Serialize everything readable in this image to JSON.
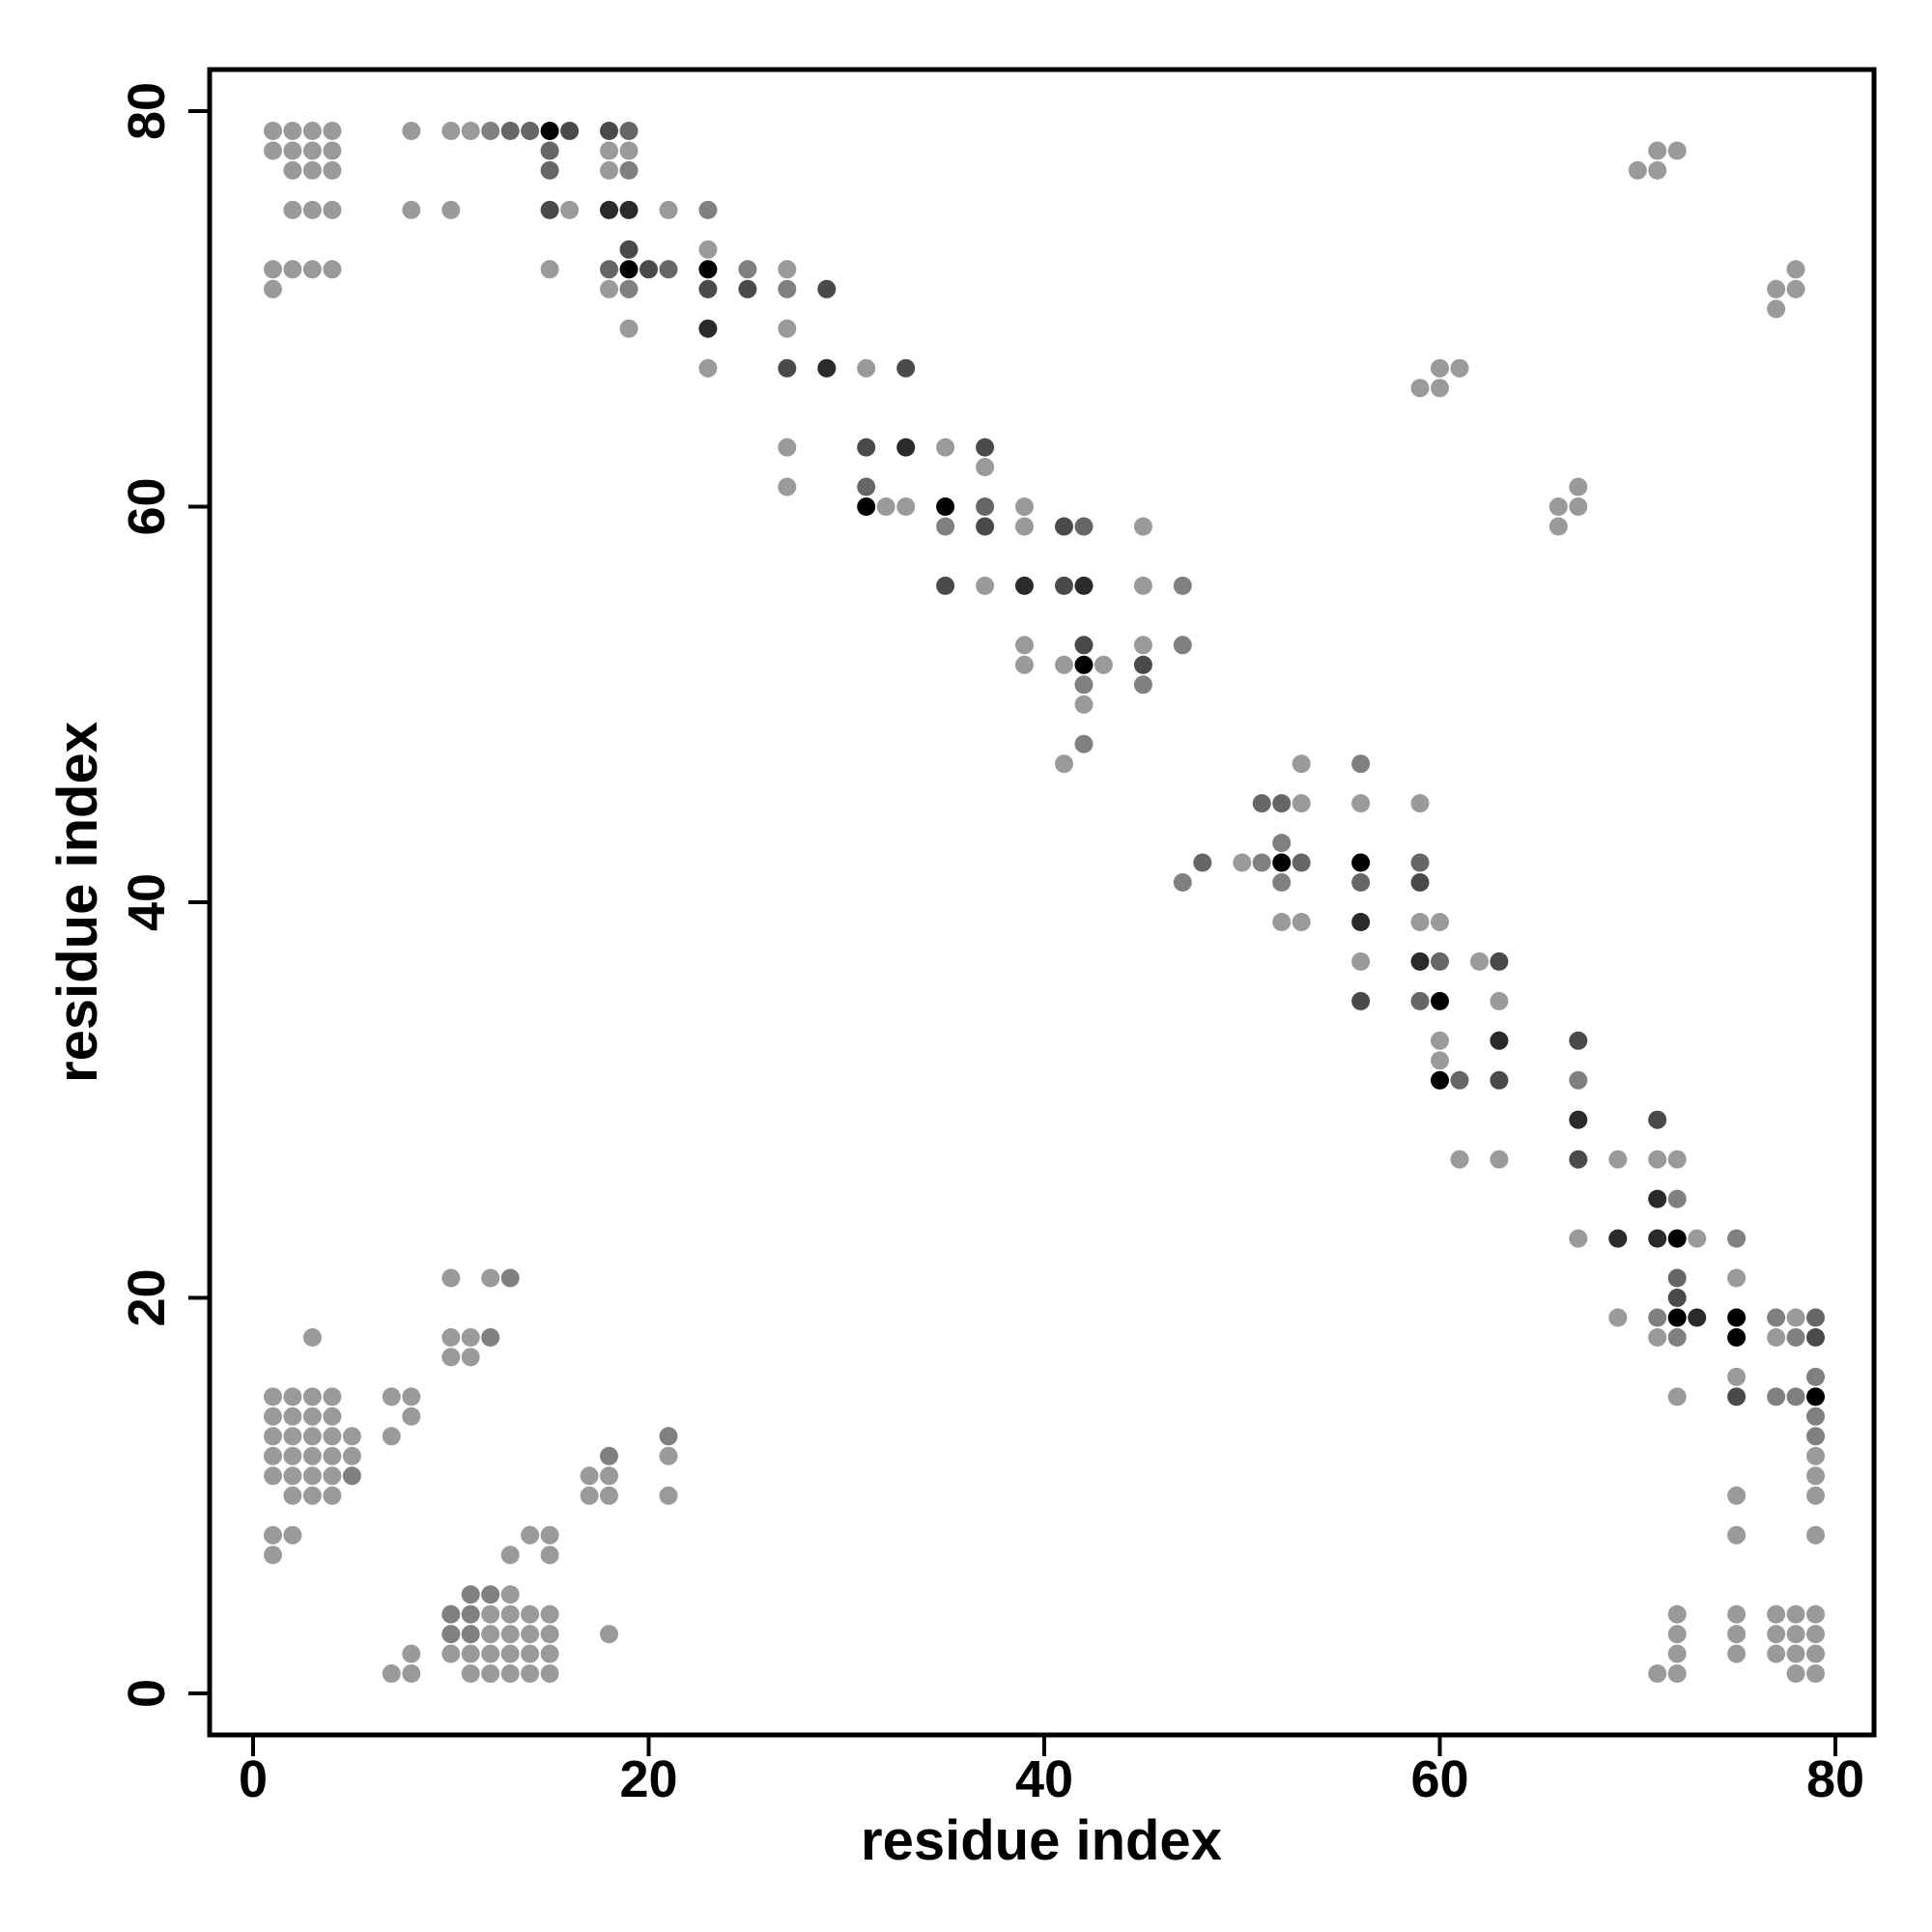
{
  "chart_data": {
    "type": "scatter",
    "title": "",
    "xlabel": "residue index",
    "ylabel": "residue index",
    "xlim": [
      -2,
      82
    ],
    "ylim": [
      -2,
      82
    ],
    "xticks": [
      0,
      20,
      40,
      60,
      80
    ],
    "yticks": [
      0,
      20,
      40,
      60,
      80
    ],
    "xtick_labels": [
      "0",
      "20",
      "40",
      "60",
      "80"
    ],
    "ytick_labels": [
      "0",
      "20",
      "40",
      "60",
      "80"
    ],
    "grid": false,
    "legend": "none",
    "shade_scale": [
      "#9a9a9a",
      "#808080",
      "#666666",
      "#4a4a4a",
      "#2a2a2a",
      "#000000"
    ],
    "points": [
      [
        1,
        79,
        0
      ],
      [
        2,
        79,
        0
      ],
      [
        3,
        79,
        0
      ],
      [
        4,
        79,
        0
      ],
      [
        1,
        78,
        0
      ],
      [
        2,
        78,
        0
      ],
      [
        3,
        78,
        0
      ],
      [
        4,
        78,
        0
      ],
      [
        2,
        77,
        0
      ],
      [
        3,
        77,
        0
      ],
      [
        4,
        77,
        0
      ],
      [
        2,
        75,
        0
      ],
      [
        3,
        75,
        0
      ],
      [
        4,
        75,
        0
      ],
      [
        1,
        72,
        0
      ],
      [
        2,
        72,
        0
      ],
      [
        3,
        72,
        0
      ],
      [
        4,
        72,
        0
      ],
      [
        1,
        71,
        0
      ],
      [
        8,
        79,
        0
      ],
      [
        8,
        75,
        0
      ],
      [
        10,
        79,
        0
      ],
      [
        11,
        79,
        0
      ],
      [
        12,
        79,
        1
      ],
      [
        13,
        79,
        2
      ],
      [
        14,
        79,
        2
      ],
      [
        15,
        79,
        5
      ],
      [
        16,
        79,
        3
      ],
      [
        15,
        78,
        2
      ],
      [
        15,
        77,
        2
      ],
      [
        15,
        75,
        3
      ],
      [
        16,
        75,
        0
      ],
      [
        15,
        72,
        0
      ],
      [
        10,
        75,
        0
      ],
      [
        18,
        79,
        3
      ],
      [
        19,
        79,
        2
      ],
      [
        18,
        78,
        0
      ],
      [
        19,
        78,
        0
      ],
      [
        18,
        77,
        0
      ],
      [
        19,
        77,
        1
      ],
      [
        18,
        75,
        4
      ],
      [
        19,
        75,
        4
      ],
      [
        19,
        73,
        3
      ],
      [
        18,
        72,
        2
      ],
      [
        19,
        72,
        5
      ],
      [
        20,
        72,
        3
      ],
      [
        21,
        72,
        2
      ],
      [
        18,
        71,
        0
      ],
      [
        19,
        71,
        1
      ],
      [
        19,
        69,
        0
      ],
      [
        21,
        75,
        0
      ],
      [
        23,
        75,
        1
      ],
      [
        23,
        73,
        0
      ],
      [
        23,
        72,
        5
      ],
      [
        23,
        71,
        3
      ],
      [
        23,
        69,
        4
      ],
      [
        23,
        67,
        0
      ],
      [
        25,
        72,
        1
      ],
      [
        25,
        71,
        3
      ],
      [
        27,
        72,
        0
      ],
      [
        27,
        71,
        1
      ],
      [
        29,
        71,
        3
      ],
      [
        27,
        69,
        0
      ],
      [
        27,
        67,
        3
      ],
      [
        29,
        67,
        4
      ],
      [
        31,
        67,
        0
      ],
      [
        33,
        67,
        3
      ],
      [
        27,
        63,
        0
      ],
      [
        27,
        61,
        0
      ],
      [
        31,
        63,
        3
      ],
      [
        33,
        63,
        4
      ],
      [
        35,
        63,
        0
      ],
      [
        37,
        63,
        3
      ],
      [
        37,
        62,
        0
      ],
      [
        31,
        61,
        2
      ],
      [
        31,
        60,
        5
      ],
      [
        32,
        60,
        0
      ],
      [
        33,
        60,
        0
      ],
      [
        35,
        60,
        5
      ],
      [
        37,
        60,
        2
      ],
      [
        39,
        60,
        0
      ],
      [
        35,
        59,
        1
      ],
      [
        37,
        59,
        3
      ],
      [
        39,
        59,
        0
      ],
      [
        41,
        59,
        3
      ],
      [
        42,
        59,
        2
      ],
      [
        45,
        59,
        0
      ],
      [
        35,
        56,
        3
      ],
      [
        37,
        56,
        0
      ],
      [
        39,
        56,
        4
      ],
      [
        41,
        56,
        3
      ],
      [
        42,
        56,
        4
      ],
      [
        45,
        56,
        0
      ],
      [
        47,
        56,
        1
      ],
      [
        39,
        53,
        0
      ],
      [
        42,
        53,
        3
      ],
      [
        45,
        53,
        0
      ],
      [
        47,
        53,
        1
      ],
      [
        39,
        52,
        0
      ],
      [
        41,
        52,
        0
      ],
      [
        42,
        52,
        5
      ],
      [
        43,
        52,
        0
      ],
      [
        45,
        52,
        3
      ],
      [
        42,
        51,
        1
      ],
      [
        45,
        51,
        1
      ],
      [
        42,
        50,
        0
      ],
      [
        42,
        48,
        1
      ],
      [
        41,
        47,
        0
      ],
      [
        53,
        47,
        0
      ],
      [
        56,
        47,
        1
      ],
      [
        51,
        45,
        2
      ],
      [
        52,
        45,
        2
      ],
      [
        53,
        45,
        0
      ],
      [
        56,
        45,
        0
      ],
      [
        59,
        45,
        0
      ],
      [
        52,
        43,
        1
      ],
      [
        48,
        42,
        2
      ],
      [
        50,
        42,
        0
      ],
      [
        51,
        42,
        1
      ],
      [
        52,
        42,
        5
      ],
      [
        53,
        42,
        2
      ],
      [
        56,
        42,
        5
      ],
      [
        59,
        42,
        2
      ],
      [
        52,
        41,
        1
      ],
      [
        47,
        41,
        1
      ],
      [
        56,
        41,
        2
      ],
      [
        59,
        41,
        3
      ],
      [
        52,
        39,
        0
      ],
      [
        53,
        39,
        0
      ],
      [
        56,
        39,
        4
      ],
      [
        59,
        39,
        0
      ],
      [
        60,
        39,
        0
      ],
      [
        56,
        37,
        0
      ],
      [
        59,
        37,
        4
      ],
      [
        60,
        37,
        2
      ],
      [
        62,
        37,
        0
      ],
      [
        63,
        37,
        3
      ],
      [
        56,
        35,
        3
      ],
      [
        59,
        35,
        2
      ],
      [
        60,
        35,
        5
      ],
      [
        63,
        35,
        0
      ],
      [
        60,
        33,
        0
      ],
      [
        63,
        33,
        4
      ],
      [
        60,
        32,
        0
      ],
      [
        60,
        31,
        5
      ],
      [
        61,
        31,
        2
      ],
      [
        63,
        31,
        3
      ],
      [
        61,
        27,
        0
      ],
      [
        63,
        27,
        0
      ],
      [
        67,
        33,
        3
      ],
      [
        67,
        31,
        1
      ],
      [
        67,
        29,
        4
      ],
      [
        67,
        27,
        3
      ],
      [
        69,
        27,
        0
      ],
      [
        71,
        29,
        3
      ],
      [
        71,
        27,
        0
      ],
      [
        72,
        27,
        0
      ],
      [
        71,
        25,
        4
      ],
      [
        72,
        25,
        1
      ],
      [
        67,
        23,
        0
      ],
      [
        69,
        23,
        4
      ],
      [
        71,
        23,
        4
      ],
      [
        72,
        23,
        5
      ],
      [
        73,
        23,
        0
      ],
      [
        75,
        23,
        1
      ],
      [
        72,
        21,
        2
      ],
      [
        75,
        21,
        0
      ],
      [
        72,
        20,
        3
      ],
      [
        69,
        19,
        0
      ],
      [
        71,
        19,
        1
      ],
      [
        72,
        19,
        5
      ],
      [
        73,
        19,
        4
      ],
      [
        75,
        19,
        5
      ],
      [
        77,
        19,
        1
      ],
      [
        78,
        19,
        0
      ],
      [
        79,
        19,
        2
      ],
      [
        71,
        18,
        0
      ],
      [
        72,
        18,
        1
      ],
      [
        75,
        18,
        5
      ],
      [
        77,
        18,
        0
      ],
      [
        78,
        18,
        1
      ],
      [
        79,
        18,
        3
      ],
      [
        75,
        16,
        0
      ],
      [
        79,
        16,
        1
      ],
      [
        72,
        15,
        0
      ],
      [
        75,
        15,
        3
      ],
      [
        77,
        15,
        1
      ],
      [
        78,
        15,
        1
      ],
      [
        79,
        15,
        5
      ],
      [
        79,
        14,
        1
      ],
      [
        79,
        13,
        1
      ],
      [
        79,
        12,
        0
      ],
      [
        79,
        11,
        0
      ],
      [
        79,
        10,
        0
      ],
      [
        75,
        10,
        0
      ],
      [
        75,
        8,
        0
      ],
      [
        79,
        8,
        0
      ],
      [
        72,
        4,
        0
      ],
      [
        75,
        4,
        0
      ],
      [
        77,
        4,
        0
      ],
      [
        78,
        4,
        0
      ],
      [
        79,
        4,
        0
      ],
      [
        72,
        3,
        0
      ],
      [
        75,
        3,
        0
      ],
      [
        77,
        3,
        0
      ],
      [
        78,
        3,
        0
      ],
      [
        79,
        3,
        0
      ],
      [
        72,
        2,
        0
      ],
      [
        75,
        2,
        0
      ],
      [
        77,
        2,
        0
      ],
      [
        78,
        2,
        0
      ],
      [
        79,
        2,
        0
      ],
      [
        71,
        1,
        0
      ],
      [
        72,
        1,
        0
      ],
      [
        78,
        1,
        0
      ],
      [
        79,
        1,
        0
      ],
      [
        70,
        77,
        0
      ],
      [
        71,
        77,
        0
      ],
      [
        71,
        78,
        0
      ],
      [
        72,
        78,
        0
      ],
      [
        77,
        70,
        0
      ],
      [
        77,
        71,
        0
      ],
      [
        78,
        71,
        0
      ],
      [
        78,
        72,
        0
      ],
      [
        59,
        66,
        0
      ],
      [
        60,
        66,
        0
      ],
      [
        60,
        67,
        0
      ],
      [
        61,
        67,
        0
      ],
      [
        66,
        59,
        0
      ],
      [
        66,
        60,
        0
      ],
      [
        67,
        60,
        0
      ],
      [
        67,
        61,
        0
      ],
      [
        1,
        15,
        0
      ],
      [
        2,
        15,
        0
      ],
      [
        3,
        15,
        0
      ],
      [
        4,
        15,
        0
      ],
      [
        1,
        14,
        0
      ],
      [
        2,
        14,
        0
      ],
      [
        3,
        14,
        0
      ],
      [
        4,
        14,
        0
      ],
      [
        1,
        13,
        0
      ],
      [
        2,
        13,
        0
      ],
      [
        3,
        13,
        0
      ],
      [
        4,
        13,
        0
      ],
      [
        5,
        13,
        0
      ],
      [
        1,
        12,
        0
      ],
      [
        2,
        12,
        0
      ],
      [
        3,
        12,
        0
      ],
      [
        4,
        12,
        0
      ],
      [
        5,
        12,
        0
      ],
      [
        1,
        11,
        0
      ],
      [
        2,
        11,
        0
      ],
      [
        3,
        11,
        0
      ],
      [
        4,
        11,
        0
      ],
      [
        5,
        11,
        1
      ],
      [
        2,
        10,
        0
      ],
      [
        3,
        10,
        0
      ],
      [
        4,
        10,
        0
      ],
      [
        1,
        8,
        0
      ],
      [
        2,
        8,
        0
      ],
      [
        1,
        7,
        0
      ],
      [
        3,
        18,
        0
      ],
      [
        7,
        15,
        0
      ],
      [
        8,
        15,
        0
      ],
      [
        8,
        14,
        0
      ],
      [
        7,
        13,
        0
      ],
      [
        10,
        21,
        0
      ],
      [
        12,
        21,
        0
      ],
      [
        13,
        21,
        1
      ],
      [
        10,
        18,
        0
      ],
      [
        11,
        18,
        0
      ],
      [
        12,
        18,
        1
      ],
      [
        10,
        17,
        0
      ],
      [
        11,
        17,
        0
      ],
      [
        17,
        11,
        0
      ],
      [
        18,
        11,
        0
      ],
      [
        18,
        12,
        1
      ],
      [
        17,
        10,
        0
      ],
      [
        18,
        10,
        0
      ],
      [
        21,
        13,
        1
      ],
      [
        21,
        12,
        0
      ],
      [
        21,
        10,
        0
      ],
      [
        13,
        7,
        0
      ],
      [
        14,
        8,
        0
      ],
      [
        15,
        8,
        0
      ],
      [
        15,
        7,
        0
      ],
      [
        11,
        5,
        1
      ],
      [
        12,
        5,
        1
      ],
      [
        13,
        5,
        0
      ],
      [
        10,
        4,
        1
      ],
      [
        11,
        4,
        1
      ],
      [
        12,
        4,
        0
      ],
      [
        13,
        4,
        0
      ],
      [
        14,
        4,
        0
      ],
      [
        15,
        4,
        0
      ],
      [
        10,
        3,
        1
      ],
      [
        11,
        3,
        1
      ],
      [
        12,
        3,
        0
      ],
      [
        13,
        3,
        0
      ],
      [
        14,
        3,
        0
      ],
      [
        15,
        3,
        0
      ],
      [
        10,
        2,
        0
      ],
      [
        11,
        2,
        0
      ],
      [
        12,
        2,
        0
      ],
      [
        13,
        2,
        0
      ],
      [
        14,
        2,
        0
      ],
      [
        15,
        2,
        0
      ],
      [
        11,
        1,
        0
      ],
      [
        12,
        1,
        0
      ],
      [
        13,
        1,
        0
      ],
      [
        14,
        1,
        0
      ],
      [
        15,
        1,
        0
      ],
      [
        8,
        2,
        0
      ],
      [
        8,
        1,
        0
      ],
      [
        7,
        1,
        0
      ],
      [
        18,
        3,
        0
      ]
    ]
  }
}
